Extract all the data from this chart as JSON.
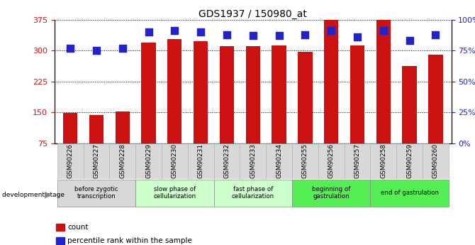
{
  "title": "GDS1937 / 150980_at",
  "samples": [
    "GSM90226",
    "GSM90227",
    "GSM90228",
    "GSM90229",
    "GSM90230",
    "GSM90231",
    "GSM90232",
    "GSM90233",
    "GSM90234",
    "GSM90255",
    "GSM90256",
    "GSM90257",
    "GSM90258",
    "GSM90259",
    "GSM90260"
  ],
  "counts": [
    148,
    144,
    152,
    320,
    327,
    322,
    311,
    310,
    312,
    296,
    375,
    312,
    375,
    262,
    290
  ],
  "percentiles": [
    77,
    75,
    77,
    90,
    91,
    90,
    88,
    87,
    87,
    88,
    91,
    86,
    91,
    83,
    88
  ],
  "ylim_left": [
    75,
    375
  ],
  "ylim_right": [
    0,
    100
  ],
  "yticks_left": [
    75,
    150,
    225,
    300,
    375
  ],
  "yticks_right": [
    0,
    25,
    50,
    75,
    100
  ],
  "ytick_labels_right": [
    "0%",
    "25%",
    "50%",
    "75%",
    "100%"
  ],
  "bar_color": "#cc1111",
  "dot_color": "#2222cc",
  "stage_groups": [
    {
      "label": "before zygotic\ntranscription",
      "start": 0,
      "end": 3,
      "color": "#d8d8d8"
    },
    {
      "label": "slow phase of\ncellularization",
      "start": 3,
      "end": 6,
      "color": "#ccffcc"
    },
    {
      "label": "fast phase of\ncellularization",
      "start": 6,
      "end": 9,
      "color": "#ccffcc"
    },
    {
      "label": "beginning of\ngastrulation",
      "start": 9,
      "end": 12,
      "color": "#55ee55"
    },
    {
      "label": "end of gastrulation",
      "start": 12,
      "end": 15,
      "color": "#55ee55"
    }
  ],
  "bar_width": 0.55,
  "dot_size": 50,
  "background_color": "#ffffff",
  "tick_label_color_left": "#cc1111",
  "tick_label_color_right": "#2222cc",
  "legend_items": [
    {
      "label": "count",
      "color": "#cc1111"
    },
    {
      "label": "percentile rank within the sample",
      "color": "#2222cc"
    }
  ]
}
